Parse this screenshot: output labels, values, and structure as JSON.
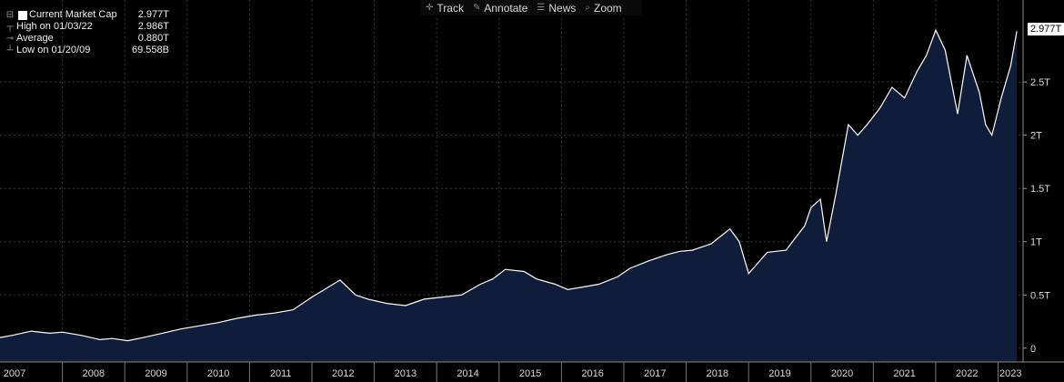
{
  "toolbar": {
    "track": "Track",
    "annotate": "Annotate",
    "news": "News",
    "zoom": "Zoom"
  },
  "legend": {
    "current": {
      "label": "Current Market Cap",
      "value": "2.977T"
    },
    "high": {
      "label": "High on 01/03/22",
      "value": "2.986T"
    },
    "average": {
      "label": "Average",
      "value": "0.880T"
    },
    "low": {
      "label": "Low on 01/20/09",
      "value": "69.558B"
    }
  },
  "last_value_label": "2.977T",
  "colors": {
    "background": "#000000",
    "area": "#0f1d3a",
    "line": "#ffffff",
    "grid": "#3a3a3a"
  },
  "chart_data": {
    "type": "area",
    "title": "",
    "xlabel": "",
    "ylabel": "",
    "x_ticks": [
      "2007",
      "2008",
      "2009",
      "2010",
      "2011",
      "2012",
      "2013",
      "2014",
      "2015",
      "2016",
      "2017",
      "2018",
      "2019",
      "2020",
      "2021",
      "2022",
      "2023"
    ],
    "y_ticks": [
      {
        "value": 0,
        "label": "0"
      },
      {
        "value": 0.5,
        "label": "0.5T"
      },
      {
        "value": 1,
        "label": "1T"
      },
      {
        "value": 1.5,
        "label": "1.5T"
      },
      {
        "value": 2,
        "label": "2T"
      },
      {
        "value": 2.5,
        "label": "2.5T"
      }
    ],
    "xlim": [
      2007.0,
      2023.4
    ],
    "ylim": [
      -0.13,
      3.27
    ],
    "grid": true,
    "series": [
      {
        "values_unit": "trillion USD",
        "x": [
          2007.0,
          2007.2,
          2007.5,
          2007.8,
          2008.0,
          2008.3,
          2008.6,
          2008.8,
          2009.05,
          2009.3,
          2009.6,
          2009.9,
          2010.2,
          2010.5,
          2010.8,
          2011.1,
          2011.4,
          2011.7,
          2012.0,
          2012.2,
          2012.45,
          2012.7,
          2012.9,
          2013.2,
          2013.5,
          2013.8,
          2014.1,
          2014.4,
          2014.7,
          2014.9,
          2015.1,
          2015.4,
          2015.6,
          2015.9,
          2016.1,
          2016.3,
          2016.6,
          2016.9,
          2017.1,
          2017.4,
          2017.7,
          2017.9,
          2018.1,
          2018.4,
          2018.7,
          2018.85,
          2019.0,
          2019.3,
          2019.6,
          2019.9,
          2020.0,
          2020.15,
          2020.25,
          2020.4,
          2020.6,
          2020.75,
          2020.9,
          2021.1,
          2021.3,
          2021.5,
          2021.7,
          2021.85,
          2022.0,
          2022.15,
          2022.35,
          2022.5,
          2022.7,
          2022.8,
          2022.9,
          2023.05,
          2023.2,
          2023.3
        ],
        "y": [
          0.1,
          0.12,
          0.16,
          0.14,
          0.15,
          0.12,
          0.08,
          0.09,
          0.07,
          0.1,
          0.14,
          0.18,
          0.21,
          0.24,
          0.28,
          0.31,
          0.33,
          0.36,
          0.48,
          0.55,
          0.64,
          0.5,
          0.46,
          0.42,
          0.4,
          0.46,
          0.48,
          0.5,
          0.6,
          0.65,
          0.74,
          0.72,
          0.65,
          0.6,
          0.55,
          0.57,
          0.6,
          0.67,
          0.75,
          0.82,
          0.88,
          0.91,
          0.92,
          0.98,
          1.12,
          1.0,
          0.7,
          0.9,
          0.92,
          1.15,
          1.32,
          1.4,
          1.0,
          1.45,
          2.1,
          2.0,
          2.1,
          2.25,
          2.45,
          2.35,
          2.6,
          2.75,
          2.986,
          2.8,
          2.2,
          2.75,
          2.4,
          2.1,
          2.0,
          2.35,
          2.65,
          2.977
        ]
      }
    ],
    "annotations": [
      {
        "text": "2.977T",
        "x": 2023.3,
        "y": 2.977
      }
    ]
  }
}
